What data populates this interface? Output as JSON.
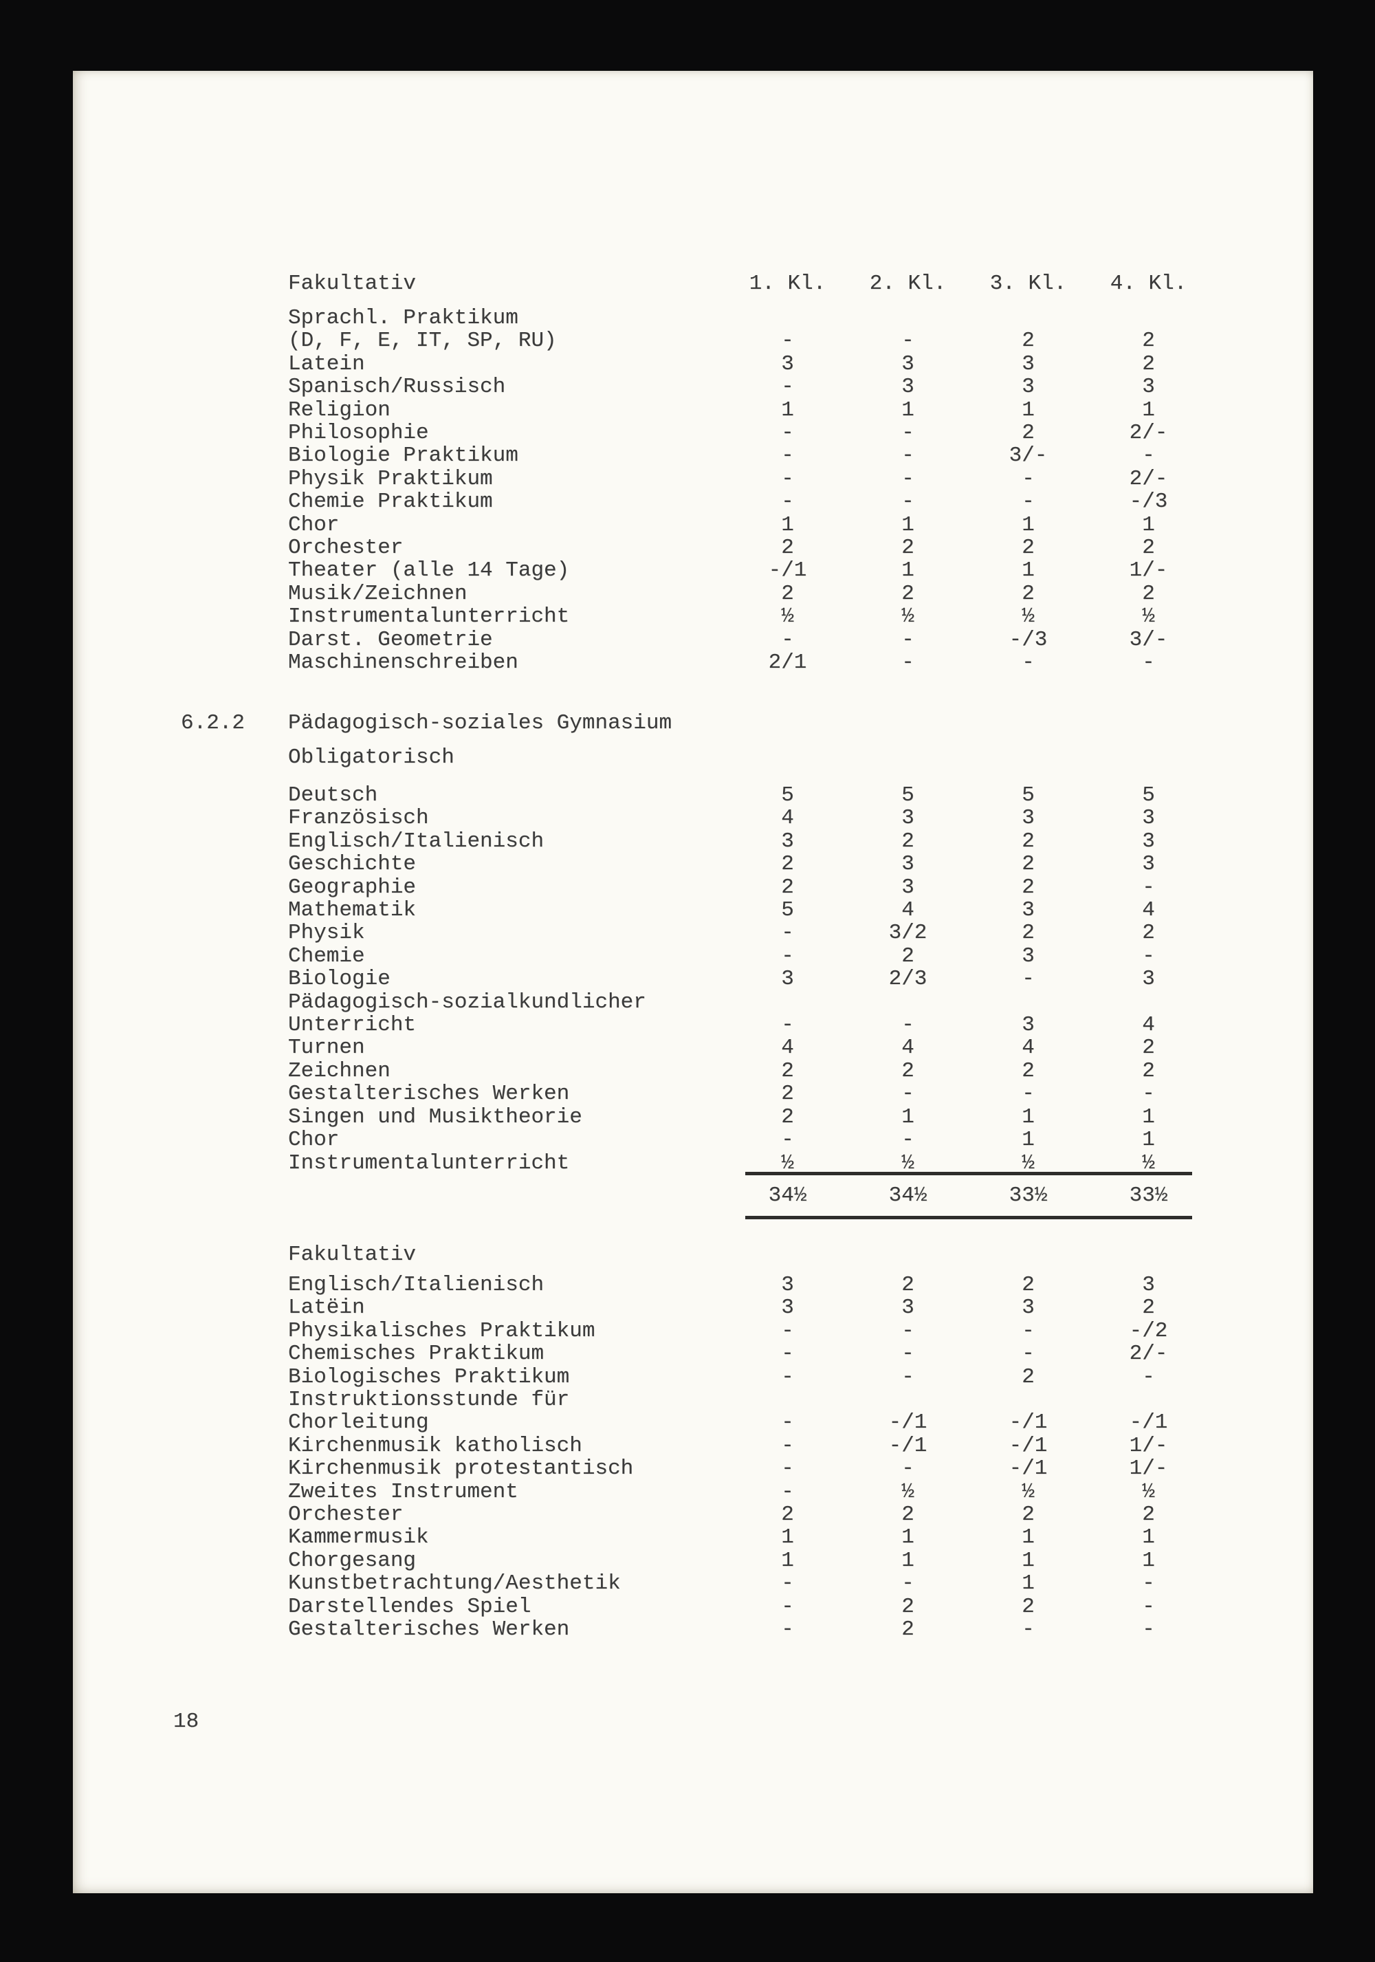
{
  "colors": {
    "background": "#0a0a0b",
    "paper": "#fbfaf5",
    "ink": "#3b3b3b"
  },
  "page": {
    "number": "18"
  },
  "table1": {
    "header": {
      "label": "Fakultativ",
      "cols": [
        "1. Kl.",
        "2. Kl.",
        "3. Kl.",
        "4. Kl."
      ]
    },
    "rows": [
      {
        "label": "Sprachl. Praktikum",
        "values": [
          "",
          "",
          "",
          ""
        ]
      },
      {
        "label": "(D, F, E, IT, SP, RU)",
        "values": [
          "-",
          "-",
          "2",
          "2"
        ]
      },
      {
        "label": "Latein",
        "values": [
          "3",
          "3",
          "3",
          "2"
        ]
      },
      {
        "label": "Spanisch/Russisch",
        "values": [
          "-",
          "3",
          "3",
          "3"
        ]
      },
      {
        "label": "Religion",
        "values": [
          "1",
          "1",
          "1",
          "1"
        ]
      },
      {
        "label": "Philosophie",
        "values": [
          "-",
          "-",
          "2",
          "2/-"
        ]
      },
      {
        "label": "Biologie Praktikum",
        "values": [
          "-",
          "-",
          "3/-",
          "-"
        ]
      },
      {
        "label": "Physik Praktikum",
        "values": [
          "-",
          "-",
          "-",
          "2/-"
        ]
      },
      {
        "label": "Chemie Praktikum",
        "values": [
          "-",
          "-",
          "-",
          "-/3"
        ]
      },
      {
        "label": "Chor",
        "values": [
          "1",
          "1",
          "1",
          "1"
        ]
      },
      {
        "label": "Orchester",
        "values": [
          "2",
          "2",
          "2",
          "2"
        ]
      },
      {
        "label": "Theater (alle 14 Tage)",
        "values": [
          "-/1",
          "1",
          "1",
          "1/-"
        ]
      },
      {
        "label": "Musik/Zeichnen",
        "values": [
          "2",
          "2",
          "2",
          "2"
        ]
      },
      {
        "label": "Instrumentalunterricht",
        "values": [
          "½",
          "½",
          "½",
          "½"
        ]
      },
      {
        "label": "Darst. Geometrie",
        "values": [
          "-",
          "-",
          "-/3",
          "3/-"
        ]
      },
      {
        "label": "Maschinenschreiben",
        "values": [
          "2/1",
          "-",
          "-",
          "-"
        ]
      }
    ]
  },
  "section": {
    "number": "6.2.2",
    "title": "Pädagogisch-soziales Gymnasium",
    "subtitle": "Obligatorisch"
  },
  "table2": {
    "rows": [
      {
        "label": "Deutsch",
        "values": [
          "5",
          "5",
          "5",
          "5"
        ]
      },
      {
        "label": "Französisch",
        "values": [
          "4",
          "3",
          "3",
          "3"
        ]
      },
      {
        "label": "Englisch/Italienisch",
        "values": [
          "3",
          "2",
          "2",
          "3"
        ]
      },
      {
        "label": "Geschichte",
        "values": [
          "2",
          "3",
          "2",
          "3"
        ]
      },
      {
        "label": "Geographie",
        "values": [
          "2",
          "3",
          "2",
          "-"
        ]
      },
      {
        "label": "Mathematik",
        "values": [
          "5",
          "4",
          "3",
          "4"
        ]
      },
      {
        "label": "Physik",
        "values": [
          "-",
          "3/2",
          "2",
          "2"
        ]
      },
      {
        "label": "Chemie",
        "values": [
          "-",
          "2",
          "3",
          "-"
        ]
      },
      {
        "label": "Biologie",
        "values": [
          "3",
          "2/3",
          "-",
          "3"
        ]
      },
      {
        "label": "Pädagogisch-sozialkundlicher",
        "values": [
          "",
          "",
          "",
          ""
        ]
      },
      {
        "label": "Unterricht",
        "values": [
          "-",
          "-",
          "3",
          "4"
        ]
      },
      {
        "label": "Turnen",
        "values": [
          "4",
          "4",
          "4",
          "2"
        ]
      },
      {
        "label": "Zeichnen",
        "values": [
          "2",
          "2",
          "2",
          "2"
        ]
      },
      {
        "label": "Gestalterisches Werken",
        "values": [
          "2",
          "-",
          "-",
          "-"
        ]
      },
      {
        "label": "Singen und Musiktheorie",
        "values": [
          "2",
          "1",
          "1",
          "1"
        ]
      },
      {
        "label": "Chor",
        "values": [
          "-",
          "-",
          "1",
          "1"
        ]
      },
      {
        "label": "Instrumentalunterricht",
        "values": [
          "½",
          "½",
          "½",
          "½"
        ]
      }
    ],
    "totals": [
      "34½",
      "34½",
      "33½",
      "33½"
    ]
  },
  "table3": {
    "title": "Fakultativ",
    "rows": [
      {
        "label": "Englisch/Italienisch",
        "values": [
          "3",
          "2",
          "2",
          "3"
        ]
      },
      {
        "label": "Latëin",
        "values": [
          "3",
          "3",
          "3",
          "2"
        ]
      },
      {
        "label": "Physikalisches Praktikum",
        "values": [
          "-",
          "-",
          "-",
          "-/2"
        ]
      },
      {
        "label": "Chemisches Praktikum",
        "values": [
          "-",
          "-",
          "-",
          "2/-"
        ]
      },
      {
        "label": "Biologisches Praktikum",
        "values": [
          "-",
          "-",
          "2",
          "-"
        ]
      },
      {
        "label": "Instruktionsstunde für",
        "values": [
          "",
          "",
          "",
          ""
        ]
      },
      {
        "label": "Chorleitung",
        "values": [
          "-",
          "-/1",
          "-/1",
          "-/1"
        ]
      },
      {
        "label": "Kirchenmusik katholisch",
        "values": [
          "-",
          "-/1",
          "-/1",
          "1/-"
        ]
      },
      {
        "label": "Kirchenmusik protestantisch",
        "values": [
          "-",
          "-",
          "-/1",
          "1/-"
        ]
      },
      {
        "label": "Zweites Instrument",
        "values": [
          "-",
          "½",
          "½",
          "½"
        ]
      },
      {
        "label": "Orchester",
        "values": [
          "2",
          "2",
          "2",
          "2"
        ]
      },
      {
        "label": "Kammermusik",
        "values": [
          "1",
          "1",
          "1",
          "1"
        ]
      },
      {
        "label": "Chorgesang",
        "values": [
          "1",
          "1",
          "1",
          "1"
        ]
      },
      {
        "label": "Kunstbetrachtung/Aesthetik",
        "values": [
          "-",
          "-",
          "1",
          "-"
        ]
      },
      {
        "label": "Darstellendes Spiel",
        "values": [
          "-",
          "2",
          "2",
          "-"
        ]
      },
      {
        "label": "Gestalterisches Werken",
        "values": [
          "-",
          "2",
          "-",
          "-"
        ]
      }
    ]
  }
}
